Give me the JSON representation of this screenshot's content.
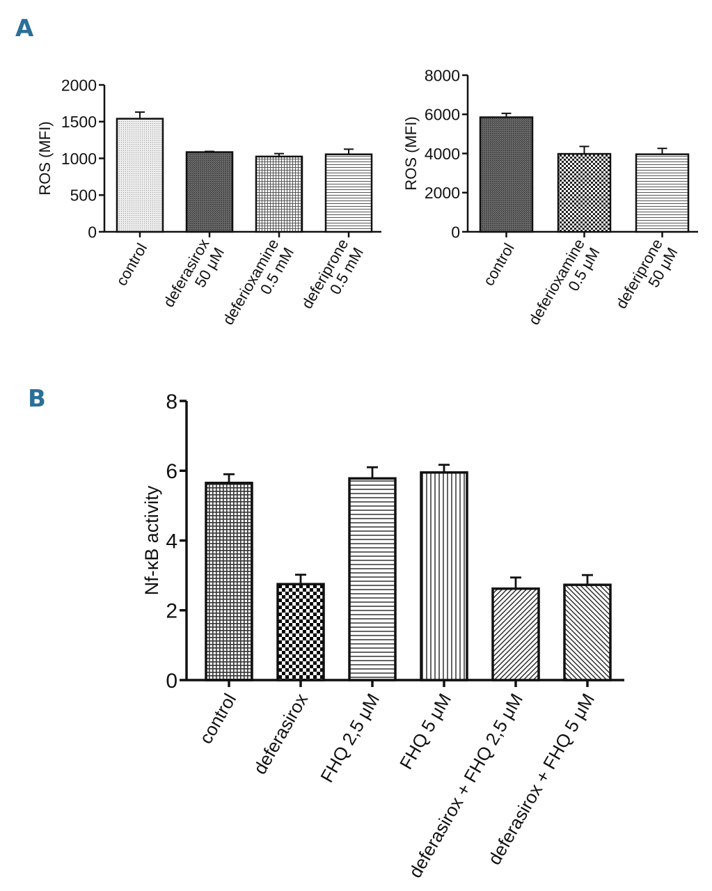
{
  "panel_labels": {
    "a": "A",
    "b": "B"
  },
  "chart_data": [
    {
      "id": "a1",
      "panel": "A",
      "type": "bar",
      "ylabel": "ROS (MFI)",
      "ylim": [
        0,
        2000
      ],
      "yticks": [
        0,
        500,
        1000,
        1500,
        2000
      ],
      "categories": [
        [
          "control"
        ],
        [
          "deferasirox",
          "50 μM"
        ],
        [
          "deferioxamine",
          "0.5 mM"
        ],
        [
          "deferiprone",
          "0.5 mM"
        ]
      ],
      "values": [
        1540,
        1085,
        1025,
        1055
      ],
      "errors": [
        90,
        10,
        40,
        70
      ],
      "fills": [
        "dots",
        "dark",
        "grid",
        "hlines"
      ]
    },
    {
      "id": "a2",
      "panel": "A",
      "type": "bar",
      "ylabel": "ROS (MFI)",
      "ylim": [
        0,
        8000
      ],
      "yticks": [
        0,
        2000,
        4000,
        6000,
        8000
      ],
      "categories": [
        [
          "control"
        ],
        [
          "deferioxamine",
          "0.5 μM"
        ],
        [
          "deferiprone",
          "50 μM"
        ]
      ],
      "values": [
        5850,
        3980,
        3960
      ],
      "errors": [
        200,
        380,
        300
      ],
      "fills": [
        "dark",
        "checker_small",
        "hlines"
      ]
    },
    {
      "id": "b",
      "panel": "B",
      "type": "bar",
      "ylabel": "Nf-κB activity",
      "ylim": [
        0,
        8
      ],
      "yticks": [
        0,
        2,
        4,
        6,
        8
      ],
      "categories": [
        [
          "control"
        ],
        [
          "deferasirox"
        ],
        [
          "FHQ 2,5 μM"
        ],
        [
          "FHQ 5 μM"
        ],
        [
          "deferasirox + FHQ 2,5 μM"
        ],
        [
          "deferasirox + FHQ 5 μM"
        ]
      ],
      "values": [
        5.65,
        2.75,
        5.78,
        5.95,
        2.62,
        2.73
      ],
      "errors": [
        0.25,
        0.27,
        0.32,
        0.22,
        0.32,
        0.28
      ],
      "fills": [
        "grid_dense",
        "checker",
        "hlines_wide",
        "vlines",
        "diag_up",
        "diag_down"
      ]
    }
  ]
}
